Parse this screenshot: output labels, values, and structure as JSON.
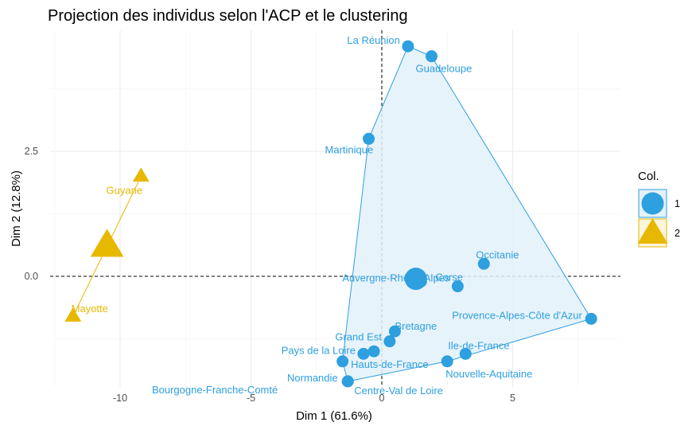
{
  "chart_data": {
    "type": "scatter",
    "title": "Projection des individus selon l'ACP et le clustering",
    "xlabel": "Dim 1 (61.6%)",
    "ylabel": "Dim 2 (12.8%)",
    "xlim": [
      -12.5,
      8.8
    ],
    "ylim": [
      -2.2,
      4.7
    ],
    "xticks": [
      -10,
      -5,
      0,
      5
    ],
    "yticks": [
      0.0,
      2.5
    ],
    "xtick_labels": [
      "-10",
      "-5",
      "0",
      "5"
    ],
    "ytick_labels": [
      "0.0",
      "2.5"
    ],
    "grid": true,
    "reference_lines": {
      "x": 0,
      "y": 0,
      "style": "dashed"
    },
    "legend": {
      "title": "Col.",
      "placement": "right",
      "entries": [
        "1",
        "2"
      ]
    },
    "series": [
      {
        "name": "1",
        "shape": "circle",
        "color": "#2E9FDF",
        "fill": "#E3F1FA",
        "centroid": {
          "x": 1.3,
          "y": -0.05
        },
        "hull": [
          "La Réunion",
          "Guadeloupe",
          "Provence-Alpes-Côte d'Azur",
          "Nouvelle-Aquitaine",
          "Centre-Val de Loire",
          "Normandie",
          "Martinique"
        ],
        "points": [
          {
            "label": "La Réunion",
            "x": 1.0,
            "y": 4.6
          },
          {
            "label": "Guadeloupe",
            "x": 1.9,
            "y": 4.4
          },
          {
            "label": "Martinique",
            "x": -0.5,
            "y": 2.75
          },
          {
            "label": "Occitanie",
            "x": 3.9,
            "y": 0.25
          },
          {
            "label": "Corse",
            "x": 1.5,
            "y": -0.1
          },
          {
            "label": "Provence-Alpes-Côte d'Azur",
            "x": 8.0,
            "y": -0.85
          },
          {
            "label": "Auvergne-Rhône-Alpes",
            "x": 2.9,
            "y": -0.2
          },
          {
            "label": "Bretagne",
            "x": 0.5,
            "y": -1.1
          },
          {
            "label": "Grand Est",
            "x": 0.3,
            "y": -1.3
          },
          {
            "label": "Ile-de-France",
            "x": 3.2,
            "y": -1.55
          },
          {
            "label": "Pays de la Loire",
            "x": -0.7,
            "y": -1.55
          },
          {
            "label": "Hauts-de-France",
            "x": -0.3,
            "y": -1.5
          },
          {
            "label": "Nouvelle-Aquitaine",
            "x": 2.5,
            "y": -1.7
          },
          {
            "label": "Normandie",
            "x": -1.5,
            "y": -1.7
          },
          {
            "label": "Centre-Val de Loire",
            "x": -1.3,
            "y": -2.1
          },
          {
            "label": "Bourgogne-Franche-Comté",
            "x": -1.3,
            "y": -2.1
          }
        ]
      },
      {
        "name": "2",
        "shape": "triangle",
        "color": "#E7B800",
        "centroid": {
          "x": -10.5,
          "y": 0.6
        },
        "hull": [
          "Guyane",
          "Mayotte"
        ],
        "points": [
          {
            "label": "Guyane",
            "x": -9.2,
            "y": 2.0
          },
          {
            "label": "Mayotte",
            "x": -11.8,
            "y": -0.8
          }
        ]
      }
    ]
  }
}
